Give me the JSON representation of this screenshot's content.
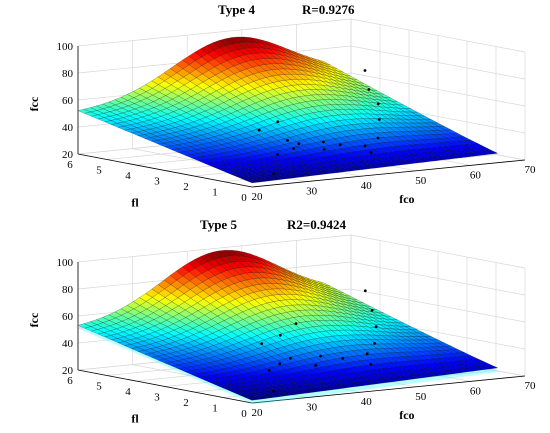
{
  "figure": {
    "panels": [
      {
        "type_label": "Type 4",
        "stat_label": "R=0.9276"
      },
      {
        "type_label": "Type 5",
        "stat_label": "R2=0.9424"
      }
    ]
  },
  "chart_data": [
    {
      "type": "surface",
      "title": "Type 4",
      "annotation": "R=0.9276",
      "xlabel": "fco",
      "ylabel": "fl",
      "zlabel": "fcc",
      "xlim": [
        20,
        70
      ],
      "ylim": [
        0,
        6
      ],
      "zlim": [
        20,
        100
      ],
      "xticks": [
        20,
        30,
        40,
        50,
        60,
        70
      ],
      "yticks": [
        0,
        1,
        2,
        3,
        4,
        5,
        6
      ],
      "zticks": [
        20,
        40,
        60,
        80,
        100
      ],
      "colormap": "jet",
      "grid": true,
      "surface_corners": {
        "fco20_fl0": 23,
        "fco20_fl6": 51,
        "fco65_fl0": 27,
        "fco65_fl6": 60,
        "peak_value": 95,
        "peak_at": [
          48,
          6
        ]
      },
      "scatter_points": [
        [
          25,
          0.2,
          27
        ],
        [
          30,
          1.0,
          36
        ],
        [
          34,
          1.2,
          38
        ],
        [
          36,
          1.4,
          40
        ],
        [
          38,
          0.9,
          37
        ],
        [
          35,
          1.6,
          42
        ],
        [
          40,
          1.3,
          40
        ],
        [
          42,
          1.1,
          38
        ],
        [
          45,
          0.6,
          33
        ],
        [
          46,
          1.0,
          36
        ],
        [
          50,
          1.3,
          39
        ],
        [
          55,
          2.2,
          47
        ],
        [
          58,
          2.8,
          55
        ],
        [
          60,
          3.5,
          62
        ],
        [
          63,
          4.2,
          72
        ],
        [
          33,
          2.2,
          48
        ],
        [
          38,
          2.5,
          51
        ]
      ]
    },
    {
      "type": "surface",
      "title": "Type 5",
      "annotation": "R2=0.9424",
      "xlabel": "fco",
      "ylabel": "fl",
      "zlabel": "fcc",
      "xlim": [
        20,
        70
      ],
      "ylim": [
        0,
        6
      ],
      "zlim": [
        20,
        100
      ],
      "xticks": [
        20,
        30,
        40,
        50,
        60,
        70
      ],
      "yticks": [
        0,
        1,
        2,
        3,
        4,
        5,
        6
      ],
      "zticks": [
        20,
        40,
        60,
        80,
        100
      ],
      "colormap": "jet",
      "grid": true,
      "surface_corners": {
        "fco20_fl0": 22,
        "fco20_fl6": 51,
        "fco65_fl0": 28,
        "fco65_fl6": 58,
        "peak_value": 98,
        "peak_at": [
          46,
          6
        ]
      },
      "scatter_points": [
        [
          25,
          0.2,
          26
        ],
        [
          29,
          1.1,
          36
        ],
        [
          32,
          1.3,
          39
        ],
        [
          35,
          1.5,
          41
        ],
        [
          37,
          1.0,
          37
        ],
        [
          40,
          1.4,
          41
        ],
        [
          43,
          1.2,
          39
        ],
        [
          46,
          0.8,
          35
        ],
        [
          48,
          1.3,
          40
        ],
        [
          52,
          1.8,
          44
        ],
        [
          56,
          2.5,
          52
        ],
        [
          59,
          3.2,
          60
        ],
        [
          62,
          4.0,
          70
        ],
        [
          34,
          2.3,
          49
        ],
        [
          39,
          2.6,
          52
        ],
        [
          44,
          3.0,
          57
        ]
      ]
    }
  ]
}
